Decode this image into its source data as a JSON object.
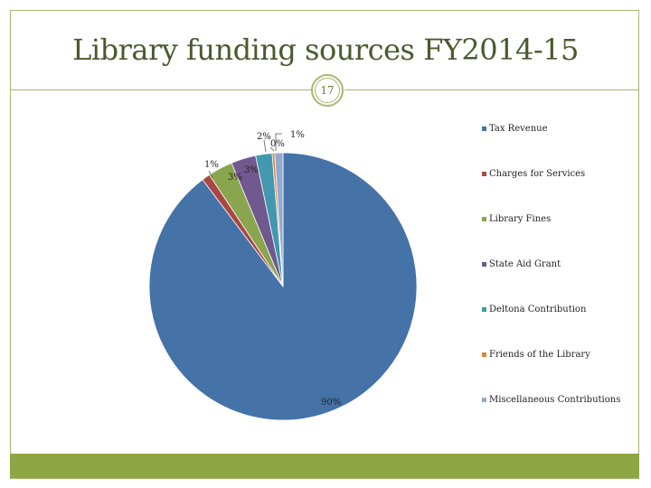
{
  "slide": {
    "title": "Library funding sources FY2014-15",
    "page_number": "17"
  },
  "colors": {
    "accent": "#a7b870",
    "footer": "#8ea644",
    "title": "#4a5a2e"
  },
  "chart_data": {
    "type": "pie",
    "title": "",
    "legend_position": "right",
    "slices": [
      {
        "name": "Tax Revenue",
        "value": 90,
        "label": "90%",
        "color": "#4572a7"
      },
      {
        "name": "Charges for Services",
        "value": 1,
        "label": "1%",
        "color": "#aa4643"
      },
      {
        "name": "Library Fines",
        "value": 3,
        "label": "3%",
        "color": "#89a54e"
      },
      {
        "name": "State Aid Grant",
        "value": 3,
        "label": "3%",
        "color": "#71588f"
      },
      {
        "name": "Deltona Contribution",
        "value": 2,
        "label": "2%",
        "color": "#4198af"
      },
      {
        "name": "Friends of the Library",
        "value": 0.3,
        "label": "0%",
        "color": "#db843d"
      },
      {
        "name": "Miscellaneous Contributions",
        "value": 1,
        "label": "1%",
        "color": "#93a9cf"
      }
    ]
  }
}
